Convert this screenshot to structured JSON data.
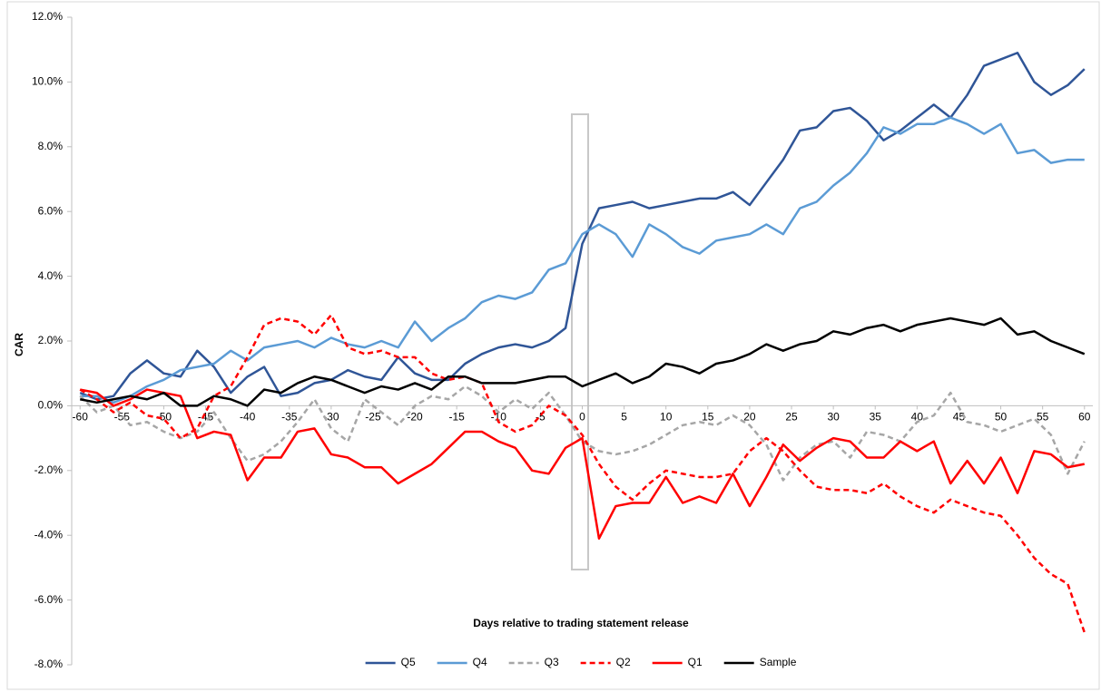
{
  "chart_data": {
    "type": "line",
    "x_label": "Days relative to trading statement release",
    "y_label": "CAR",
    "x": [
      -60,
      -58,
      -56,
      -54,
      -52,
      -50,
      -48,
      -46,
      -44,
      -42,
      -40,
      -38,
      -36,
      -34,
      -32,
      -30,
      -28,
      -26,
      -24,
      -22,
      -20,
      -18,
      -16,
      -14,
      -12,
      -10,
      -8,
      -6,
      -4,
      -2,
      0,
      2,
      4,
      6,
      8,
      10,
      12,
      14,
      16,
      18,
      20,
      22,
      24,
      26,
      28,
      30,
      32,
      34,
      36,
      38,
      40,
      42,
      44,
      46,
      48,
      50,
      52,
      54,
      56,
      58,
      60
    ],
    "series": [
      {
        "name": "Q5",
        "color": "#2f5597",
        "dash": false,
        "values": [
          0.4,
          0.2,
          0.3,
          1.0,
          1.4,
          1.0,
          0.9,
          1.7,
          1.2,
          0.4,
          0.9,
          1.2,
          0.3,
          0.4,
          0.7,
          0.8,
          1.1,
          0.9,
          0.8,
          1.5,
          1.0,
          0.8,
          0.8,
          1.3,
          1.6,
          1.8,
          1.9,
          1.8,
          2.0,
          2.4,
          5.0,
          6.1,
          6.2,
          6.3,
          6.1,
          6.2,
          6.3,
          6.4,
          6.4,
          6.6,
          6.2,
          6.9,
          7.6,
          8.5,
          8.6,
          9.1,
          9.2,
          8.8,
          8.2,
          8.5,
          8.9,
          9.3,
          8.9,
          9.6,
          10.5,
          10.7,
          10.9,
          10.0,
          9.6,
          9.9,
          10.4
        ]
      },
      {
        "name": "Q4",
        "color": "#5b9bd5",
        "dash": false,
        "values": [
          0.3,
          0.3,
          0.1,
          0.3,
          0.6,
          0.8,
          1.1,
          1.2,
          1.3,
          1.7,
          1.4,
          1.8,
          1.9,
          2.0,
          1.8,
          2.1,
          1.9,
          1.8,
          2.0,
          1.8,
          2.6,
          2.0,
          2.4,
          2.7,
          3.2,
          3.4,
          3.3,
          3.5,
          4.2,
          4.4,
          5.3,
          5.6,
          5.3,
          4.6,
          5.6,
          5.3,
          4.9,
          4.7,
          5.1,
          5.2,
          5.3,
          5.6,
          5.3,
          6.1,
          6.3,
          6.8,
          7.2,
          7.8,
          8.6,
          8.4,
          8.7,
          8.7,
          8.9,
          8.7,
          8.4,
          8.7,
          7.8,
          7.9,
          7.5,
          7.6,
          7.6
        ]
      },
      {
        "name": "Q3",
        "color": "#a6a6a6",
        "dash": true,
        "values": [
          0.3,
          -0.2,
          0.0,
          -0.6,
          -0.5,
          -0.8,
          -1.0,
          -0.8,
          -0.2,
          -1.0,
          -1.7,
          -1.5,
          -1.1,
          -0.5,
          0.2,
          -0.7,
          -1.1,
          0.2,
          -0.2,
          -0.6,
          0.0,
          0.3,
          0.2,
          0.6,
          0.3,
          -0.2,
          0.2,
          -0.1,
          0.4,
          -0.3,
          -1.1,
          -1.4,
          -1.5,
          -1.4,
          -1.2,
          -0.9,
          -0.6,
          -0.5,
          -0.6,
          -0.3,
          -0.6,
          -1.2,
          -2.3,
          -1.6,
          -1.2,
          -1.1,
          -1.6,
          -0.8,
          -0.9,
          -1.1,
          -0.5,
          -0.3,
          0.4,
          -0.5,
          -0.6,
          -0.8,
          -0.6,
          -0.4,
          -0.9,
          -2.1,
          -1.1
        ]
      },
      {
        "name": "Q2",
        "color": "#ff0000",
        "dash": true,
        "values": [
          0.5,
          0.2,
          -0.2,
          0.1,
          -0.3,
          -0.4,
          -1.0,
          -0.7,
          0.3,
          0.6,
          1.5,
          2.5,
          2.7,
          2.6,
          2.2,
          2.8,
          1.8,
          1.6,
          1.7,
          1.5,
          1.5,
          1.0,
          0.8,
          0.9,
          0.7,
          -0.5,
          -0.8,
          -0.6,
          0.0,
          -0.3,
          -0.9,
          -1.8,
          -2.5,
          -2.9,
          -2.4,
          -2.0,
          -2.1,
          -2.2,
          -2.2,
          -2.1,
          -1.4,
          -1.0,
          -1.4,
          -2.0,
          -2.5,
          -2.6,
          -2.6,
          -2.7,
          -2.4,
          -2.8,
          -3.1,
          -3.3,
          -2.9,
          -3.1,
          -3.3,
          -3.4,
          -4.0,
          -4.7,
          -5.2,
          -5.5,
          -7.0
        ]
      },
      {
        "name": "Q1",
        "color": "#ff0000",
        "dash": false,
        "values": [
          0.5,
          0.4,
          0.0,
          0.2,
          0.5,
          0.4,
          0.3,
          -1.0,
          -0.8,
          -0.9,
          -2.3,
          -1.6,
          -1.6,
          -0.8,
          -0.7,
          -1.5,
          -1.6,
          -1.9,
          -1.9,
          -2.4,
          -2.1,
          -1.8,
          -1.3,
          -0.8,
          -0.8,
          -1.1,
          -1.3,
          -2.0,
          -2.1,
          -1.3,
          -1.0,
          -4.1,
          -3.1,
          -3.0,
          -3.0,
          -2.2,
          -3.0,
          -2.8,
          -3.0,
          -2.1,
          -3.1,
          -2.2,
          -1.2,
          -1.7,
          -1.3,
          -1.0,
          -1.1,
          -1.6,
          -1.6,
          -1.1,
          -1.4,
          -1.1,
          -2.4,
          -1.7,
          -2.4,
          -1.6,
          -2.7,
          -1.4,
          -1.5,
          -1.9,
          -1.8
        ]
      },
      {
        "name": "Sample",
        "color": "#000000",
        "dash": false,
        "values": [
          0.2,
          0.1,
          0.2,
          0.3,
          0.2,
          0.4,
          0.0,
          0.0,
          0.3,
          0.2,
          0.0,
          0.5,
          0.4,
          0.7,
          0.9,
          0.8,
          0.6,
          0.4,
          0.6,
          0.5,
          0.7,
          0.5,
          0.9,
          0.9,
          0.7,
          0.7,
          0.7,
          0.8,
          0.9,
          0.9,
          0.6,
          0.8,
          1.0,
          0.7,
          0.9,
          1.3,
          1.2,
          1.0,
          1.3,
          1.4,
          1.6,
          1.9,
          1.7,
          1.9,
          2.0,
          2.3,
          2.2,
          2.4,
          2.5,
          2.3,
          2.5,
          2.6,
          2.7,
          2.6,
          2.5,
          2.7,
          2.2,
          2.3,
          2.0,
          1.8,
          1.6
        ]
      }
    ],
    "xlim": [
      -61,
      61
    ],
    "xticks": [
      -60,
      -55,
      -50,
      -45,
      -40,
      -35,
      -30,
      -25,
      -20,
      -15,
      -10,
      -5,
      0,
      5,
      10,
      15,
      20,
      25,
      30,
      35,
      40,
      45,
      50,
      55,
      60
    ],
    "ylim": [
      -8,
      12
    ],
    "yticks": [
      {
        "value": -8,
        "label": "-8.0%"
      },
      {
        "value": -6,
        "label": "-6.0%"
      },
      {
        "value": -4,
        "label": "-4.0%"
      },
      {
        "value": -2,
        "label": "-2.0%"
      },
      {
        "value": 0,
        "label": "0.0%"
      },
      {
        "value": 2,
        "label": "2.0%"
      },
      {
        "value": 4,
        "label": "4.0%"
      },
      {
        "value": 6,
        "label": "6.0%"
      },
      {
        "value": 8,
        "label": "8.0%"
      },
      {
        "value": 10,
        "label": "10.0%"
      },
      {
        "value": 12,
        "label": "12.0%"
      }
    ],
    "grid": false,
    "legend": "bottom"
  }
}
